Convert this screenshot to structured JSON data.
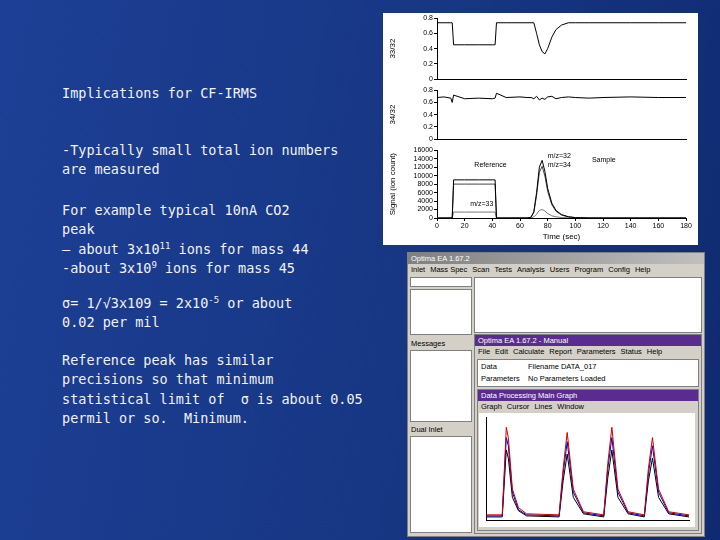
{
  "slide": {
    "paragraphs": [
      [
        [
          {
            "text": "Implications for CF-IRMS"
          }
        ]
      ],
      [
        [
          {
            "text": "-Typically small total ion numbers"
          }
        ],
        [
          {
            "text": "are measured"
          }
        ]
      ],
      [
        [
          {
            "text": "For example typical 10nA CO2"
          }
        ],
        [
          {
            "text": "peak"
          }
        ],
        [
          {
            "text": "– about 3x10"
          },
          {
            "superscript": "11"
          },
          {
            "text": " ions for mass 44"
          }
        ],
        [
          {
            "text": "-about 3x10"
          },
          {
            "superscript": "9"
          },
          {
            "text": " ions for mass 45"
          }
        ]
      ],
      [
        [
          {
            "text": "σ= 1/√3x109 = 2x10"
          },
          {
            "superscript": "-5"
          },
          {
            "text": " or about"
          }
        ],
        [
          {
            "text": "0.02 per mil"
          }
        ]
      ],
      [
        [
          {
            "text": "Reference peak has similar"
          }
        ],
        [
          {
            "text": "precisions so that minimum"
          }
        ],
        [
          {
            "text": "statistical limit of  σ is about 0.05"
          }
        ],
        [
          {
            "text": "permil or so.  Minimum."
          }
        ]
      ]
    ]
  },
  "chart_data": [
    {
      "type": "line",
      "y_label": "33/32",
      "x": [
        0,
        5,
        10,
        11,
        12,
        20,
        30,
        40,
        42,
        43,
        50,
        60,
        65,
        68,
        70,
        72,
        74,
        76,
        78,
        80,
        83,
        86,
        90,
        95,
        100,
        110,
        120,
        140,
        160,
        180
      ],
      "xlim": [
        0,
        180
      ],
      "ylim": [
        0,
        0.8
      ],
      "yticks": [
        0,
        0.2,
        0.4,
        0.6,
        0.8
      ],
      "grid": false,
      "tick_labels": "y",
      "series": [
        {
          "color": "#000000",
          "values": [
            0.74,
            0.74,
            0.74,
            0.74,
            0.45,
            0.45,
            0.45,
            0.45,
            0.45,
            0.74,
            0.74,
            0.74,
            0.74,
            0.74,
            0.74,
            0.6,
            0.45,
            0.36,
            0.33,
            0.4,
            0.55,
            0.65,
            0.71,
            0.74,
            0.74,
            0.74,
            0.74,
            0.74,
            0.74,
            0.74
          ]
        }
      ]
    },
    {
      "type": "line",
      "y_label": "34/32",
      "x": [
        0,
        5,
        10,
        11,
        12,
        20,
        30,
        40,
        42,
        43,
        50,
        60,
        65,
        68,
        70,
        72,
        74,
        76,
        78,
        80,
        83,
        86,
        90,
        95,
        100,
        110,
        120,
        140,
        160,
        180
      ],
      "xlim": [
        0,
        180
      ],
      "ylim": [
        0,
        0.8
      ],
      "yticks": [
        0,
        0.2,
        0.4,
        0.6,
        0.8
      ],
      "grid": false,
      "tick_labels": "y",
      "series": [
        {
          "color": "#000000",
          "values": [
            0.68,
            0.69,
            0.67,
            0.6,
            0.72,
            0.66,
            0.67,
            0.66,
            0.67,
            0.75,
            0.68,
            0.69,
            0.68,
            0.68,
            0.66,
            0.7,
            0.64,
            0.67,
            0.65,
            0.69,
            0.7,
            0.66,
            0.68,
            0.69,
            0.68,
            0.67,
            0.68,
            0.69,
            0.68,
            0.68
          ]
        }
      ]
    },
    {
      "type": "line",
      "y_label": "Signal (ion count)",
      "x_label": "Time (sec)",
      "x": [
        0,
        5,
        10,
        11,
        12,
        20,
        30,
        40,
        42,
        43,
        50,
        60,
        65,
        68,
        70,
        72,
        74,
        76,
        78,
        80,
        83,
        86,
        90,
        95,
        100,
        110,
        120,
        140,
        160,
        180
      ],
      "xlim": [
        0,
        180
      ],
      "xticks": [
        0,
        20,
        40,
        60,
        80,
        100,
        120,
        140,
        160,
        180
      ],
      "ylim": [
        0,
        16000
      ],
      "yticks": [
        0,
        2000,
        4000,
        6000,
        8000,
        10000,
        12000,
        14000,
        16000
      ],
      "grid": false,
      "series": [
        {
          "color": "#000000",
          "values": [
            0,
            0,
            0,
            0,
            9000,
            9000,
            9000,
            9000,
            9000,
            0,
            0,
            0,
            0,
            200,
            1500,
            6000,
            12000,
            13600,
            11000,
            7000,
            3500,
            1800,
            800,
            300,
            100,
            0,
            0,
            0,
            0,
            0
          ]
        },
        {
          "color": "#444444",
          "values": [
            0,
            0,
            0,
            0,
            8000,
            8000,
            8000,
            8000,
            8000,
            0,
            0,
            0,
            0,
            150,
            1300,
            5400,
            10800,
            12200,
            9900,
            6300,
            3100,
            1600,
            700,
            250,
            80,
            0,
            0,
            0,
            0,
            0
          ]
        },
        {
          "color": "#777777",
          "values": [
            0,
            0,
            0,
            0,
            1400,
            1400,
            1400,
            1400,
            1400,
            0,
            0,
            0,
            0,
            30,
            250,
            900,
            1800,
            2000,
            1650,
            1050,
            520,
            270,
            120,
            40,
            10,
            0,
            0,
            0,
            0,
            0
          ]
        }
      ],
      "annotations": [
        {
          "text": "Reference",
          "x": 27,
          "y": 12500
        },
        {
          "text": "m/z=32",
          "x": 80,
          "y": 14600
        },
        {
          "text": "m/z=34",
          "x": 80,
          "y": 12600
        },
        {
          "text": "Sample",
          "x": 112,
          "y": 13600
        },
        {
          "text": "m/z=33",
          "x": 24,
          "y": 3300
        }
      ]
    }
  ],
  "screenshot": {
    "title": "Optima EA 1.67.2",
    "menu": [
      "Inlet",
      "Mass Spec",
      "Scan",
      "Tests",
      "Analysis",
      "Users",
      "Program",
      "Config",
      "Help"
    ],
    "panels": [
      "Messages",
      "Dual Inlet"
    ],
    "inner_window": {
      "title": "Optima EA 1.67.2 - Manual",
      "menu": [
        "File",
        "Edit",
        "Calculate",
        "Report",
        "Parameters",
        "Status",
        "Help"
      ],
      "fields": [
        {
          "label": "Data",
          "value": "Filename DATA_017"
        },
        {
          "label": "Parameters",
          "value": "No Parameters Loaded"
        }
      ]
    },
    "graph_window": {
      "title": "Data Processing Main Graph",
      "menu": [
        "Graph",
        "Cursor",
        "Lines",
        "Window"
      ],
      "graph": {
        "type": "line",
        "tick_labels": false,
        "grid": false,
        "x": [
          0,
          8,
          10,
          11,
          13,
          16,
          20,
          36,
          38,
          40,
          43,
          48,
          58,
          60,
          62,
          65,
          70,
          78,
          80,
          82,
          85,
          90,
          100
        ],
        "xlim": [
          0,
          100
        ],
        "ylim": [
          0,
          1
        ],
        "series": [
          {
            "color": "#cc0000",
            "values": [
              0.05,
              0.05,
              0.9,
              0.8,
              0.3,
              0.12,
              0.06,
              0.05,
              0.5,
              0.85,
              0.3,
              0.08,
              0.05,
              0.55,
              0.9,
              0.3,
              0.08,
              0.05,
              0.5,
              0.8,
              0.3,
              0.08,
              0.05
            ]
          },
          {
            "color": "#0000cc",
            "values": [
              0.04,
              0.04,
              0.8,
              0.72,
              0.27,
              0.1,
              0.05,
              0.04,
              0.45,
              0.76,
              0.27,
              0.07,
              0.04,
              0.5,
              0.8,
              0.27,
              0.07,
              0.04,
              0.45,
              0.72,
              0.27,
              0.07,
              0.04
            ]
          },
          {
            "color": "#000000",
            "values": [
              0.03,
              0.03,
              0.68,
              0.6,
              0.22,
              0.09,
              0.04,
              0.03,
              0.38,
              0.64,
              0.22,
              0.06,
              0.03,
              0.41,
              0.68,
              0.22,
              0.06,
              0.03,
              0.38,
              0.6,
              0.22,
              0.06,
              0.03
            ]
          }
        ]
      }
    }
  }
}
